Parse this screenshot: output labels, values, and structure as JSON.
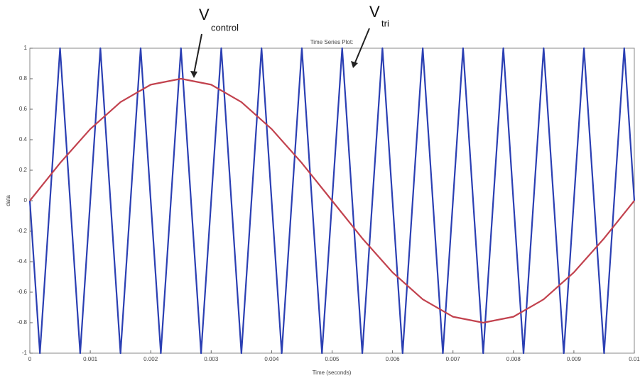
{
  "chart_data": {
    "type": "line",
    "title": "Time Series Plot:",
    "xlabel": "Time (seconds)",
    "ylabel": "data",
    "xlim": [
      0,
      0.01
    ],
    "xticks": [
      0,
      0.001,
      0.002,
      0.003,
      0.004,
      0.005,
      0.006,
      0.007,
      0.008,
      0.009,
      0.01
    ],
    "ylim": [
      -1,
      1
    ],
    "yticks": [
      -1,
      -0.8,
      -0.6,
      -0.4,
      -0.2,
      0,
      0.2,
      0.4,
      0.6,
      0.8,
      1
    ],
    "grid": false,
    "annotations": [
      {
        "text": "V",
        "sub": "control"
      },
      {
        "text": "V",
        "sub": "tri"
      }
    ],
    "series": [
      {
        "color": "#2b3fb3",
        "x": [
          0,
          0.000167,
          0.0005,
          0.000833,
          0.001167,
          0.0015,
          0.001833,
          0.002167,
          0.0025,
          0.002833,
          0.003167,
          0.0035,
          0.003833,
          0.004167,
          0.0045,
          0.004833,
          0.005167,
          0.0055,
          0.005833,
          0.006167,
          0.0065,
          0.006833,
          0.007167,
          0.0075,
          0.007833,
          0.008167,
          0.0085,
          0.008833,
          0.009167,
          0.0095,
          0.009833,
          0.01
        ],
        "values": [
          0,
          -1,
          1,
          -1,
          1,
          -1,
          1,
          -1,
          1,
          -1,
          1,
          -1,
          1,
          -1,
          1,
          -1,
          1,
          -1,
          1,
          -1,
          1,
          -1,
          1,
          -1,
          1,
          -1,
          1,
          -1,
          1,
          -1,
          1,
          0
        ]
      },
      {
        "color": "#c2424e",
        "x": [
          0,
          0.0005,
          0.001,
          0.0015,
          0.002,
          0.0025,
          0.003,
          0.0035,
          0.004,
          0.0045,
          0.005,
          0.0055,
          0.006,
          0.0065,
          0.007,
          0.0075,
          0.008,
          0.0085,
          0.009,
          0.0095,
          0.01
        ],
        "values": [
          0,
          0.247,
          0.47,
          0.647,
          0.761,
          0.8,
          0.761,
          0.647,
          0.47,
          0.247,
          0,
          -0.247,
          -0.47,
          -0.647,
          -0.761,
          -0.8,
          -0.761,
          -0.647,
          -0.47,
          -0.247,
          0
        ]
      }
    ]
  }
}
